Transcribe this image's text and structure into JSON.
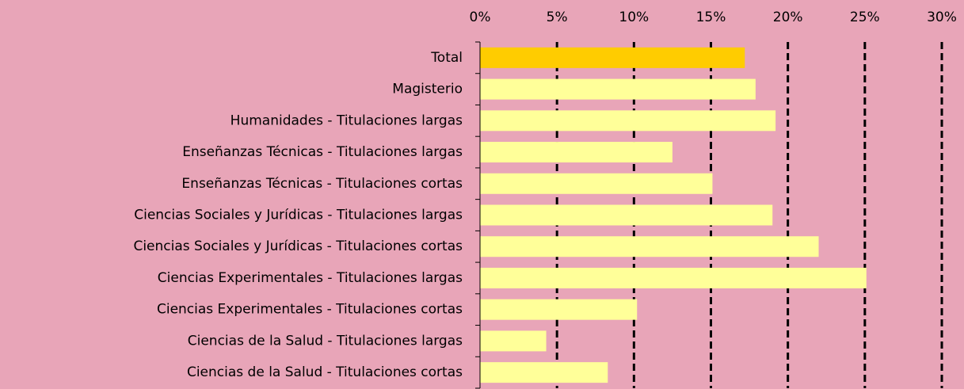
{
  "chart_data": {
    "type": "barh",
    "categories": [
      "Total",
      "Magisterio",
      "Humanidades - Titulaciones largas",
      "Enseñanzas Técnicas - Titulaciones largas",
      "Enseñanzas Técnicas - Titulaciones cortas",
      "Ciencias Sociales y Jurídicas - Titulaciones largas",
      "Ciencias Sociales y Jurídicas - Titulaciones cortas",
      "Ciencias Experimentales - Titulaciones largas",
      "Ciencias Experimentales - Titulaciones cortas",
      "Ciencias de la Salud - Titulaciones largas",
      "Ciencias de la Salud - Titulaciones cortas"
    ],
    "values": [
      17.2,
      17.9,
      19.2,
      12.5,
      15.1,
      19.0,
      22.0,
      25.1,
      10.2,
      4.3,
      8.3
    ],
    "colors": [
      "#ffcc00",
      "#ffff99",
      "#ffff99",
      "#ffff99",
      "#ffff99",
      "#ffff99",
      "#ffff99",
      "#ffff99",
      "#ffff99",
      "#ffff99",
      "#ffff99"
    ],
    "xlim": [
      0,
      30
    ],
    "xticks": [
      {
        "value": 0,
        "label": "0%"
      },
      {
        "value": 5,
        "label": "5%"
      },
      {
        "value": 10,
        "label": "10%"
      },
      {
        "value": 15,
        "label": "15%"
      },
      {
        "value": 20,
        "label": "20%"
      },
      {
        "value": 25,
        "label": "25%"
      },
      {
        "value": 30,
        "label": "30%"
      }
    ],
    "grid": true
  }
}
